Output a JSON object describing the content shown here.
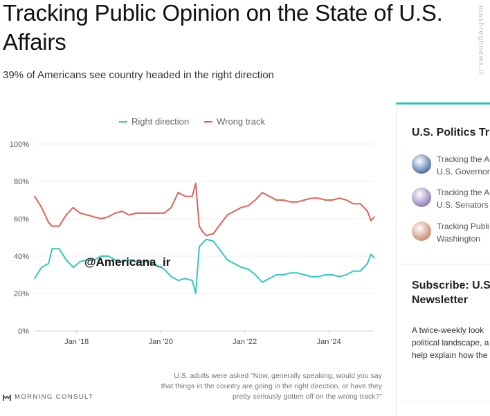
{
  "header": {
    "title": "Tracking Public Opinion on the State of U.S. Affairs",
    "subtitle": "39% of Americans see country headed in the right direction"
  },
  "watermark": {
    "overlay": "@Americana_ir",
    "side": "mashreghnews.ir"
  },
  "chart_data": {
    "type": "line",
    "x_unit": "date",
    "x_range": [
      "2017-01",
      "2025-02"
    ],
    "x_ticks": [
      {
        "date": "2018-01",
        "label": "Jan '18"
      },
      {
        "date": "2020-01",
        "label": "Jan '20"
      },
      {
        "date": "2022-01",
        "label": "Jan '22"
      },
      {
        "date": "2024-01",
        "label": "Jan '24"
      }
    ],
    "y_ticks": [
      {
        "value": 0,
        "label": "0%"
      },
      {
        "value": 20,
        "label": "20%"
      },
      {
        "value": 40,
        "label": "40%"
      },
      {
        "value": 60,
        "label": "60%"
      },
      {
        "value": 80,
        "label": "80%"
      },
      {
        "value": 100,
        "label": "100%"
      }
    ],
    "ylim": [
      0,
      100
    ],
    "grid": true,
    "legend_position": "top",
    "series": [
      {
        "name": "Right direction",
        "color": "#2ec9c3",
        "points": [
          [
            "2017-01",
            28
          ],
          [
            "2017-03",
            34
          ],
          [
            "2017-05",
            36
          ],
          [
            "2017-06",
            44
          ],
          [
            "2017-08",
            44
          ],
          [
            "2017-10",
            38
          ],
          [
            "2017-12",
            34
          ],
          [
            "2018-02",
            37
          ],
          [
            "2018-04",
            38
          ],
          [
            "2018-06",
            38
          ],
          [
            "2018-08",
            40
          ],
          [
            "2018-10",
            40
          ],
          [
            "2018-12",
            38
          ],
          [
            "2019-02",
            37
          ],
          [
            "2019-04",
            38
          ],
          [
            "2019-06",
            37
          ],
          [
            "2019-08",
            37
          ],
          [
            "2019-10",
            37
          ],
          [
            "2019-12",
            35
          ],
          [
            "2020-02",
            33
          ],
          [
            "2020-04",
            29
          ],
          [
            "2020-06",
            27
          ],
          [
            "2020-08",
            28
          ],
          [
            "2020-10",
            27
          ],
          [
            "2020-11",
            20
          ],
          [
            "2020-12",
            45
          ],
          [
            "2021-01",
            47
          ],
          [
            "2021-02",
            49
          ],
          [
            "2021-04",
            48
          ],
          [
            "2021-06",
            43
          ],
          [
            "2021-08",
            38
          ],
          [
            "2021-10",
            36
          ],
          [
            "2021-12",
            34
          ],
          [
            "2022-02",
            33
          ],
          [
            "2022-04",
            30
          ],
          [
            "2022-06",
            26
          ],
          [
            "2022-08",
            28
          ],
          [
            "2022-10",
            30
          ],
          [
            "2022-12",
            30
          ],
          [
            "2023-02",
            31
          ],
          [
            "2023-04",
            31
          ],
          [
            "2023-06",
            30
          ],
          [
            "2023-08",
            29
          ],
          [
            "2023-10",
            29
          ],
          [
            "2023-12",
            30
          ],
          [
            "2024-02",
            30
          ],
          [
            "2024-04",
            29
          ],
          [
            "2024-06",
            30
          ],
          [
            "2024-08",
            32
          ],
          [
            "2024-10",
            32
          ],
          [
            "2024-12",
            36
          ],
          [
            "2025-01",
            41
          ],
          [
            "2025-02",
            39
          ]
        ]
      },
      {
        "name": "Wrong track",
        "color": "#e45f56",
        "points": [
          [
            "2017-01",
            72
          ],
          [
            "2017-03",
            66
          ],
          [
            "2017-05",
            58
          ],
          [
            "2017-06",
            56
          ],
          [
            "2017-08",
            56
          ],
          [
            "2017-10",
            62
          ],
          [
            "2017-12",
            66
          ],
          [
            "2018-02",
            63
          ],
          [
            "2018-04",
            62
          ],
          [
            "2018-06",
            61
          ],
          [
            "2018-08",
            60
          ],
          [
            "2018-10",
            61
          ],
          [
            "2018-12",
            63
          ],
          [
            "2019-02",
            64
          ],
          [
            "2019-04",
            62
          ],
          [
            "2019-06",
            63
          ],
          [
            "2019-08",
            63
          ],
          [
            "2019-10",
            63
          ],
          [
            "2019-12",
            63
          ],
          [
            "2020-02",
            63
          ],
          [
            "2020-04",
            66
          ],
          [
            "2020-06",
            74
          ],
          [
            "2020-08",
            72
          ],
          [
            "2020-10",
            72
          ],
          [
            "2020-11",
            79
          ],
          [
            "2020-12",
            56
          ],
          [
            "2021-01",
            53
          ],
          [
            "2021-02",
            51
          ],
          [
            "2021-04",
            52
          ],
          [
            "2021-06",
            57
          ],
          [
            "2021-08",
            62
          ],
          [
            "2021-10",
            64
          ],
          [
            "2021-12",
            66
          ],
          [
            "2022-02",
            67
          ],
          [
            "2022-04",
            70
          ],
          [
            "2022-06",
            74
          ],
          [
            "2022-08",
            72
          ],
          [
            "2022-10",
            70
          ],
          [
            "2022-12",
            70
          ],
          [
            "2023-02",
            69
          ],
          [
            "2023-04",
            69
          ],
          [
            "2023-06",
            70
          ],
          [
            "2023-08",
            71
          ],
          [
            "2023-10",
            71
          ],
          [
            "2023-12",
            70
          ],
          [
            "2024-02",
            70
          ],
          [
            "2024-04",
            71
          ],
          [
            "2024-06",
            70
          ],
          [
            "2024-08",
            68
          ],
          [
            "2024-10",
            68
          ],
          [
            "2024-12",
            64
          ],
          [
            "2025-01",
            59
          ],
          [
            "2025-02",
            61
          ]
        ]
      }
    ],
    "note": "U.S. adults were asked \"Now, generally speaking, would you say that things in the country are going in the right direction, or have they pretty seriously gotten off on the wrong track?\""
  },
  "brand": {
    "name": "MORNING CONSULT"
  },
  "sidebar": {
    "title": "U.S. Politics Tr",
    "items": [
      {
        "line1": "Tracking the A",
        "line2": "U.S. Governor",
        "thumb": "capitol-flag-icon",
        "color": "#4a6fa5"
      },
      {
        "line1": "Tracking the A",
        "line2": "U.S. Senators",
        "thumb": "capitol-dome-icon",
        "color": "#8c7ab8"
      },
      {
        "line1": "Tracking Publi",
        "line2": "Washington",
        "thumb": "portrait-icon",
        "color": "#c98a6b"
      }
    ]
  },
  "subscribe": {
    "title_line1": "Subscribe: U.S",
    "title_line2": "Newsletter",
    "text_line1": "A twice-weekly look",
    "text_line2": "political landscape, a",
    "text_line3": "help explain how the"
  }
}
